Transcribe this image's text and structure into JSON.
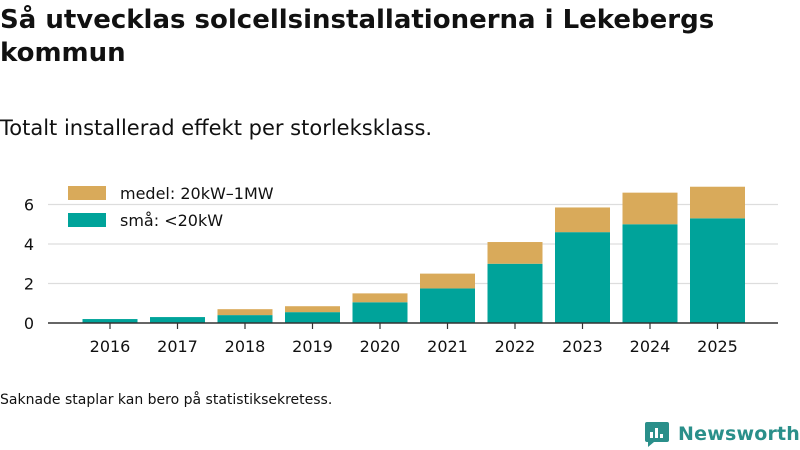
{
  "title": "Så utvecklas solcellsinstallationerna i Lekebergs kommun",
  "subtitle": "Totalt installerad effekt per storleksklass.",
  "footnote": "Saknade staplar kan bero på statistiksekretess.",
  "brand": {
    "name": "Newsworthy",
    "icon": "newsworthy-logo-icon"
  },
  "colors": {
    "medel": "#d9aa5a",
    "sma": "#00a39a",
    "grid": "#dddddd",
    "axis": "#333333",
    "text": "#111111",
    "brand": "#2a8f8a"
  },
  "chart_data": {
    "type": "bar",
    "stacked": true,
    "categories": [
      "2016",
      "2017",
      "2018",
      "2019",
      "2020",
      "2021",
      "2022",
      "2023",
      "2024",
      "2025"
    ],
    "series": [
      {
        "name": "små: <20kW",
        "key": "sma",
        "values": [
          0.2,
          0.3,
          0.4,
          0.55,
          1.05,
          1.75,
          3.0,
          4.6,
          5.0,
          5.3
        ]
      },
      {
        "name": "medel: 20kW–1MW",
        "key": "medel",
        "values": [
          0.0,
          0.0,
          0.3,
          0.3,
          0.45,
          0.75,
          1.1,
          1.25,
          1.6,
          1.6
        ]
      }
    ],
    "legend": [
      {
        "label": "medel: 20kW–1MW",
        "key": "medel"
      },
      {
        "label": "små: <20kW",
        "key": "sma"
      }
    ],
    "yticks": [
      "0",
      "2",
      "4",
      "6"
    ],
    "ylim": [
      0,
      7
    ],
    "xlabel": "",
    "ylabel": "",
    "grid": true,
    "legend_position": "top-left"
  }
}
